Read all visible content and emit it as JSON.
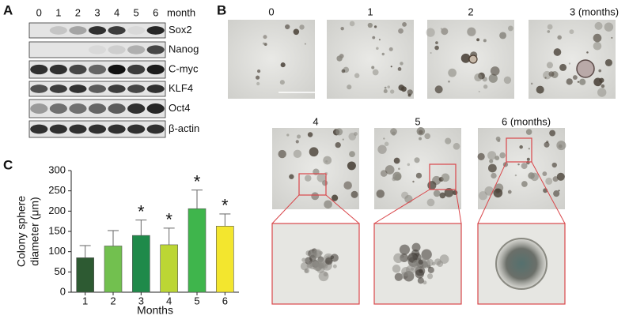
{
  "panel_a": {
    "label": "A",
    "columns": [
      "0",
      "1",
      "2",
      "3",
      "4",
      "5",
      "6"
    ],
    "column_title": "month",
    "rows": [
      "Sox2",
      "Nanog",
      "C-myc",
      "KLF4",
      "Oct4",
      "β-actin"
    ]
  },
  "panel_b": {
    "label": "B",
    "top_labels": [
      "0",
      "1",
      "2",
      "3  (months)"
    ],
    "bottom_labels": [
      "4",
      "5",
      "6 (months)"
    ]
  },
  "chart_data": {
    "type": "bar",
    "panel_label": "C",
    "categories": [
      "1",
      "2",
      "3",
      "4",
      "5",
      "6"
    ],
    "values": [
      85,
      114,
      140,
      117,
      206,
      163
    ],
    "errors": [
      30,
      38,
      38,
      41,
      46,
      30
    ],
    "colors": [
      "#2d5a32",
      "#72c04f",
      "#1f8a4a",
      "#bcd634",
      "#3fb54c",
      "#f3e62e"
    ],
    "significance": [
      null,
      null,
      "*",
      "*",
      "*",
      "*"
    ],
    "ylim": [
      0,
      300
    ],
    "yticks": [
      0,
      50,
      100,
      150,
      200,
      250,
      300
    ],
    "y_label": [
      "Colony sphere",
      "diameter (μm)"
    ],
    "x_label": "Months"
  }
}
